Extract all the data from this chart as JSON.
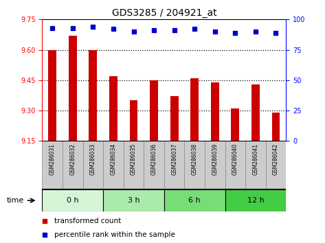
{
  "title": "GDS3285 / 204921_at",
  "samples": [
    "GSM286031",
    "GSM286032",
    "GSM286033",
    "GSM286034",
    "GSM286035",
    "GSM286036",
    "GSM286037",
    "GSM286038",
    "GSM286039",
    "GSM286040",
    "GSM286041",
    "GSM286042"
  ],
  "bar_values": [
    9.6,
    9.67,
    9.6,
    9.47,
    9.35,
    9.45,
    9.37,
    9.46,
    9.44,
    9.31,
    9.43,
    9.29
  ],
  "percentile_values": [
    93,
    93,
    94,
    92,
    90,
    91,
    91,
    92,
    90,
    89,
    90,
    89
  ],
  "bar_color": "#cc0000",
  "percentile_color": "#0000cc",
  "ylim_left": [
    9.15,
    9.75
  ],
  "ylim_right": [
    0,
    100
  ],
  "yticks_left": [
    9.15,
    9.3,
    9.45,
    9.6,
    9.75
  ],
  "yticks_right": [
    0,
    25,
    50,
    75,
    100
  ],
  "groups": [
    {
      "label": "0 h",
      "start": 0,
      "end": 3,
      "color": "#d6f5d6"
    },
    {
      "label": "3 h",
      "start": 3,
      "end": 6,
      "color": "#aaeaaa"
    },
    {
      "label": "6 h",
      "start": 6,
      "end": 9,
      "color": "#77dd77"
    },
    {
      "label": "12 h",
      "start": 9,
      "end": 12,
      "color": "#44cc44"
    }
  ],
  "time_label": "time",
  "legend_bar_label": "transformed count",
  "legend_pct_label": "percentile rank within the sample",
  "sample_bg_color": "#cccccc",
  "sample_border_color": "#888888",
  "plot_border_color": "#000000",
  "bar_width": 0.4,
  "title_fontsize": 10,
  "axis_fontsize": 7,
  "sample_fontsize": 5.5,
  "group_fontsize": 8,
  "legend_fontsize": 7.5,
  "pct_markersize": 5,
  "dotted_grid_color": "#000000"
}
